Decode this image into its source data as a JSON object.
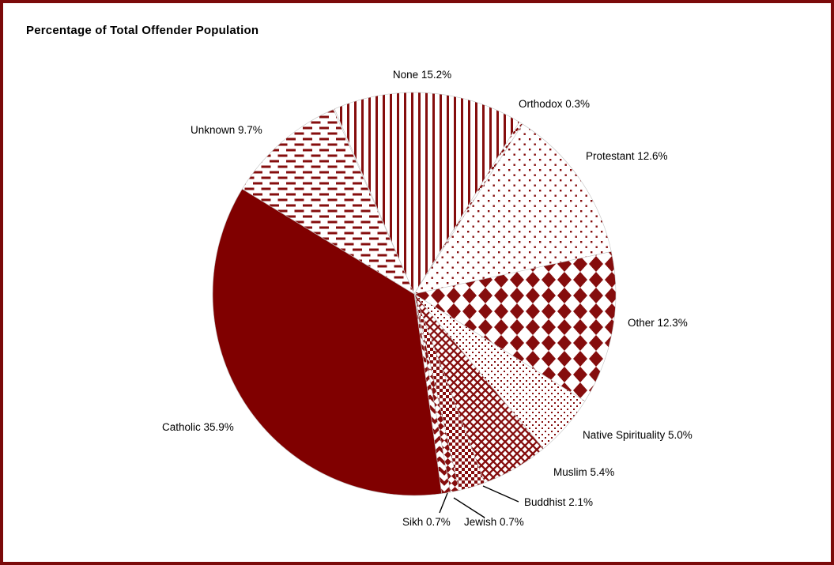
{
  "window": {
    "title": "Percentage of Total Offender Population"
  },
  "colors": {
    "maroon": "#800000",
    "pattern_ink": "#850d0d",
    "slice_outline": "#c4c4c4",
    "label_text": "#000000",
    "leader_line": "#000000",
    "page_border": "#7b0a0a",
    "background": "#ffffff"
  },
  "chart_data": {
    "type": "pie",
    "title": "Percentage of Total Offender Population",
    "unit": "%",
    "start_angle_deg": -23.3,
    "direction": "clockwise",
    "legend_position": "none",
    "labels_style": "outside-with-leader-lines-for-small-slices",
    "slices": [
      {
        "name": "None",
        "value": 15.2,
        "label": "None 15.2%",
        "pattern": "vertical-stripes"
      },
      {
        "name": "Orthodox",
        "value": 0.3,
        "label": "Orthodox 0.3%",
        "pattern": "diagonal-dashes"
      },
      {
        "name": "Protestant",
        "value": 12.6,
        "label": "Protestant 12.6%",
        "pattern": "sparse-dots"
      },
      {
        "name": "Other",
        "value": 12.3,
        "label": "Other 12.3%",
        "pattern": "diamond-grid"
      },
      {
        "name": "Native Spirituality",
        "value": 5.0,
        "label": "Native Spirituality 5.0%",
        "pattern": "dense-dots"
      },
      {
        "name": "Muslim",
        "value": 5.4,
        "label": "Muslim 5.4%",
        "pattern": "crosshatch"
      },
      {
        "name": "Buddhist",
        "value": 2.1,
        "label": "Buddhist 2.1%",
        "pattern": "checkerboard"
      },
      {
        "name": "Jewish",
        "value": 0.7,
        "label": "Jewish 0.7%",
        "pattern": "diamond-checker"
      },
      {
        "name": "Sikh",
        "value": 0.7,
        "label": "Sikh 0.7%",
        "pattern": "zigzag"
      },
      {
        "name": "Catholic",
        "value": 35.9,
        "label": "Catholic 35.9%",
        "pattern": "solid"
      },
      {
        "name": "Unknown",
        "value": 9.7,
        "label": "Unknown 9.7%",
        "pattern": "horizontal-dashes"
      }
    ]
  }
}
